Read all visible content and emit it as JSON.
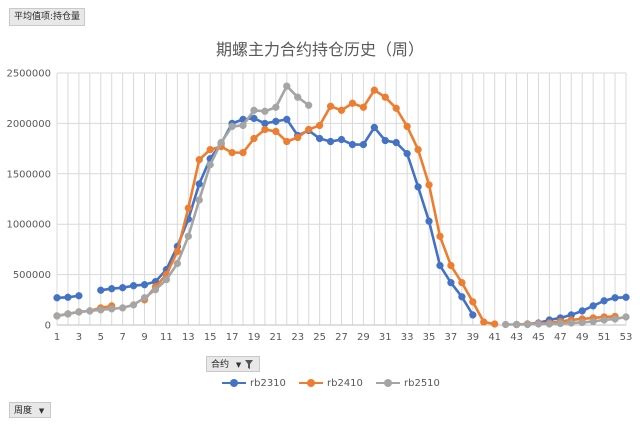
{
  "pivot": {
    "value_field_label": "平均值项:持仓量",
    "series_field_label": "合约",
    "category_field_label": "周度"
  },
  "chart_data": {
    "type": "line",
    "title": "期螺主力合约持仓历史（周）",
    "xlabel": "",
    "ylabel": "",
    "ylim": [
      0,
      2500000
    ],
    "yticks": [
      0,
      500000,
      1000000,
      1500000,
      2000000,
      2500000
    ],
    "ytick_labels": [
      "0",
      "500000",
      "1000000",
      "1500000",
      "2000000",
      "2500000"
    ],
    "xlim": [
      1,
      53
    ],
    "xticks": [
      1,
      3,
      5,
      7,
      9,
      11,
      13,
      15,
      17,
      19,
      21,
      23,
      25,
      27,
      29,
      31,
      33,
      35,
      37,
      39,
      41,
      43,
      45,
      47,
      49,
      51,
      53
    ],
    "grid": "vertical-and-horizontal",
    "legend_position": "bottom",
    "series": [
      {
        "name": "rb2310",
        "color": "#4472c4",
        "values": [
          270000,
          275000,
          290000,
          null,
          345000,
          360000,
          370000,
          390000,
          400000,
          430000,
          550000,
          780000,
          1050000,
          1400000,
          1650000,
          1800000,
          2000000,
          2040000,
          2050000,
          2000000,
          2020000,
          2040000,
          1880000,
          1930000,
          1850000,
          1820000,
          1840000,
          1790000,
          1790000,
          1960000,
          1830000,
          1810000,
          1700000,
          1370000,
          1030000,
          590000,
          420000,
          280000,
          100000,
          null,
          null,
          null,
          5000,
          10000,
          20000,
          50000,
          70000,
          100000,
          140000,
          190000,
          240000,
          270000,
          275000
        ]
      },
      {
        "name": "rb2410",
        "color": "#ed7d31",
        "values": [
          90000,
          110000,
          130000,
          140000,
          170000,
          190000,
          null,
          null,
          250000,
          380000,
          500000,
          730000,
          1160000,
          1640000,
          1740000,
          1770000,
          1710000,
          1710000,
          1850000,
          1940000,
          1920000,
          1820000,
          1860000,
          1940000,
          1980000,
          2170000,
          2130000,
          2200000,
          2160000,
          2330000,
          2260000,
          2150000,
          1970000,
          1740000,
          1390000,
          880000,
          590000,
          420000,
          230000,
          30000,
          10000,
          null,
          5000,
          10000,
          15000,
          20000,
          35000,
          50000,
          60000,
          70000,
          80000,
          85000,
          null
        ]
      },
      {
        "name": "rb2510",
        "color": "#a5a5a5",
        "values": [
          90000,
          110000,
          130000,
          140000,
          150000,
          160000,
          170000,
          200000,
          270000,
          350000,
          450000,
          610000,
          880000,
          1240000,
          1590000,
          1810000,
          1970000,
          1980000,
          2130000,
          2120000,
          2160000,
          2370000,
          2260000,
          2180000,
          null,
          null,
          null,
          null,
          null,
          null,
          null,
          null,
          null,
          null,
          null,
          null,
          null,
          null,
          null,
          null,
          null,
          5000,
          5000,
          5000,
          10000,
          10000,
          15000,
          20000,
          25000,
          35000,
          50000,
          60000,
          80000
        ]
      }
    ]
  }
}
